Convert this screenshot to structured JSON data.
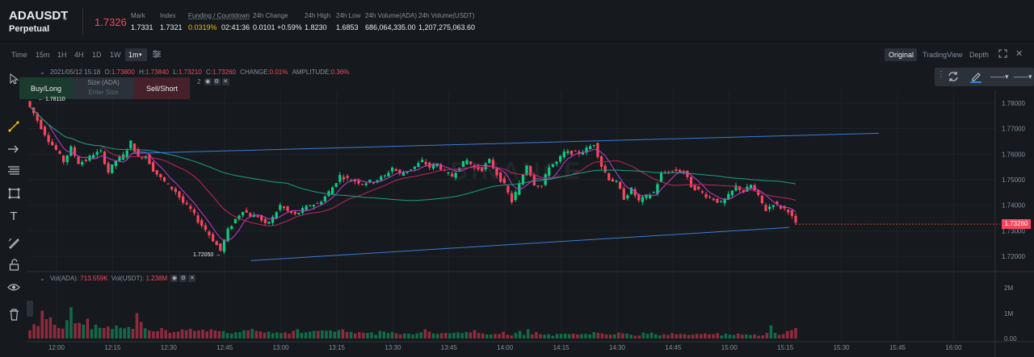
{
  "header": {
    "symbol": "ADAUSDT",
    "subtitle": "Perpetual",
    "last_price": "1.7326",
    "stats": [
      {
        "label": "Mark",
        "value": "1.7331"
      },
      {
        "label": "Index",
        "value": "1.7321"
      },
      {
        "label": "Funding / Countdown",
        "value_a": "0.0319%",
        "value_b": "02:41:36"
      },
      {
        "label": "24h Change",
        "value": "0.0101 +0.59%"
      },
      {
        "label": "24h High",
        "value": "1.8230"
      },
      {
        "label": "24h Low",
        "value": "1.6853"
      },
      {
        "label": "24h Volume(ADA)",
        "value": "686,064,335.00"
      },
      {
        "label": "24h Volume(USDT)",
        "value": "1,207,275,063.60"
      }
    ]
  },
  "toolbar": {
    "intervals": [
      "Time",
      "15m",
      "1H",
      "4H",
      "1D",
      "1W",
      "1m"
    ],
    "active_interval": "1m",
    "views": [
      "Original",
      "TradingView",
      "Depth"
    ]
  },
  "ohlc": {
    "date": "2021/05/12 15:18",
    "o_label": "O:",
    "o": "1.73800",
    "h_label": "H:",
    "h": "1.73840",
    "l_label": "L:",
    "l": "1.73210",
    "c_label": "C:",
    "c": "1.73260",
    "change_label": "CHANGE:",
    "change": "0.01%",
    "amp_label": "AMPLITUDE:",
    "amp": "0.36%",
    "extra": "2"
  },
  "order_panel": {
    "buy": "Buy/Long",
    "size_label": "Size (ADA)",
    "size_placeholder": "Enter Size",
    "sell": "Sell/Short"
  },
  "volume": {
    "label_ada": "Vol(ADA):",
    "value_ada": "713.559K",
    "label_usdt": "Vol(USDT):",
    "value_usdt": "1.238M"
  },
  "markers": {
    "current_price": "1.73260",
    "low_marker": "1.72050",
    "high_marker": "1.78110"
  },
  "chart_data": {
    "type": "candlestick",
    "price_ticks": [
      "1.78000",
      "1.77000",
      "1.76000",
      "1.75000",
      "1.74000",
      "1.73000",
      "1.72000"
    ],
    "volume_ticks": [
      "2M",
      "1M",
      "0.00"
    ],
    "time_ticks": [
      "12:00",
      "12:15",
      "12:30",
      "12:45",
      "13:00",
      "13:15",
      "13:30",
      "13:45",
      "14:00",
      "14:15",
      "14:30",
      "14:45",
      "15:00",
      "15:15",
      "15:30",
      "15:45",
      "16:00"
    ],
    "ylim": [
      1.7165,
      1.7825
    ],
    "price_path": [
      1.7808,
      1.776,
      1.7705,
      1.7655,
      1.7617,
      1.7571,
      1.7625,
      1.7566,
      1.7576,
      1.7601,
      1.7609,
      1.753,
      1.7575,
      1.7594,
      1.7647,
      1.7587,
      1.7595,
      1.7538,
      1.7506,
      1.7478,
      1.7454,
      1.741,
      1.7383,
      1.7339,
      1.7304,
      1.7264,
      1.7222,
      1.7302,
      1.7345,
      1.7381,
      1.736,
      1.7357,
      1.7323,
      1.7351,
      1.7399,
      1.7376,
      1.7362,
      1.7382,
      1.7402,
      1.7404,
      1.7434,
      1.747,
      1.7516,
      1.7503,
      1.7495,
      1.7486,
      1.7493,
      1.7501,
      1.7514,
      1.7548,
      1.7522,
      1.7535,
      1.7551,
      1.7573,
      1.7549,
      1.7562,
      1.7529,
      1.7514,
      1.7554,
      1.7576,
      1.7546,
      1.7541,
      1.7575,
      1.7521,
      1.7478,
      1.7415,
      1.7481,
      1.7559,
      1.7484,
      1.7474,
      1.7554,
      1.7568,
      1.7606,
      1.7606,
      1.7605,
      1.762,
      1.7641,
      1.7554,
      1.7504,
      1.7489,
      1.7428,
      1.7462,
      1.7416,
      1.7435,
      1.745,
      1.7522,
      1.7531,
      1.7536,
      1.7532,
      1.7475,
      1.7458,
      1.7437,
      1.7424,
      1.7408,
      1.7436,
      1.7474,
      1.7453,
      1.7479,
      1.7433,
      1.7381,
      1.7408,
      1.7391,
      1.738,
      1.7326
    ],
    "volume": [
      320000,
      560000,
      490000,
      1100000,
      760000,
      830000,
      540000,
      410000,
      390000,
      720000,
      1230000,
      600000,
      620000,
      550000,
      780000,
      360000,
      550000,
      420000,
      410000,
      470000,
      380000,
      510000,
      420000,
      400000,
      450000,
      380000,
      1000000,
      650000,
      400000,
      320000,
      280000,
      290000,
      410000,
      330000,
      230000,
      250000,
      270000,
      360000,
      330000,
      380000,
      300000,
      320000,
      350000,
      280000,
      360000,
      320000,
      290000,
      290000,
      210000,
      190000,
      240000,
      250000,
      320000,
      320000,
      380000,
      300000,
      280000,
      230000,
      270000,
      210000,
      240000,
      210000,
      240000,
      190000,
      300000,
      370000,
      220000,
      240000,
      270000,
      300000,
      300000,
      320000,
      310000,
      320000,
      270000,
      330000,
      360000,
      260000,
      260000,
      200000,
      250000,
      230000,
      220000,
      240000,
      150000,
      300000,
      270000,
      220000,
      260000,
      200000,
      160000,
      200000,
      190000,
      160000,
      200000,
      240000,
      360000,
      270000,
      200000,
      180000,
      210000,
      220000,
      200000,
      220000,
      240000,
      210000,
      260000,
      240000,
      330000,
      220000,
      200000,
      160000,
      160000,
      180000,
      180000,
      260000,
      150000,
      120000,
      220000,
      300000,
      140000,
      360000,
      160000,
      250000,
      170000,
      150000,
      170000,
      110000,
      180000,
      180000,
      190000,
      170000,
      190000,
      160000,
      170000,
      180000,
      160000,
      250000,
      230000,
      200000,
      160000,
      150000,
      160000,
      230000,
      200000,
      190000,
      150000,
      110000,
      120000,
      230000,
      180000,
      230000,
      170000,
      120000,
      170000,
      140000,
      210000,
      170000,
      180000,
      170000,
      140000,
      150000,
      180000,
      170000,
      200000,
      160000,
      170000,
      210000,
      120000,
      190000,
      150000,
      140000,
      190000,
      150000,
      160000,
      140000,
      160000,
      110000,
      120000,
      220000,
      520000,
      220000,
      140000,
      170000,
      290000,
      330000,
      410000
    ],
    "trend_lines": [
      {
        "points": [
          [
            "12:52",
            1.7183
          ],
          [
            "15:16",
            1.7313
          ]
        ]
      },
      {
        "points": [
          [
            "12:20",
            1.7603
          ],
          [
            "15:40",
            1.7682
          ]
        ]
      }
    ],
    "colors": {
      "up": "#0ecb81",
      "down": "#f6465d",
      "ma1": "#c23ad4",
      "ma2": "#c2255c",
      "ma3": "#16a085",
      "trend": "#3c7bd6"
    }
  }
}
